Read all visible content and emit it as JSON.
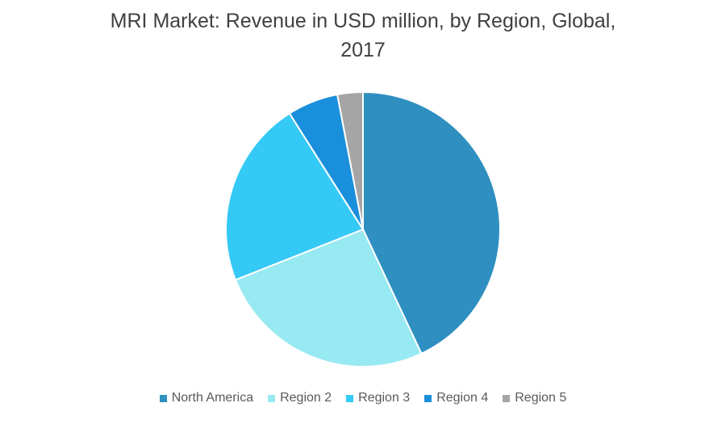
{
  "chart_data": {
    "type": "pie",
    "title": "MRI Market: Revenue in USD million, by Region, Global, 2017",
    "categories": [
      "North America",
      "Region 2",
      "Region 3",
      "Region 4",
      "Region 5"
    ],
    "values": [
      43,
      26,
      22,
      6,
      3
    ],
    "colors": [
      "#2e8fc0",
      "#97e9f2",
      "#35c9f5",
      "#1a8fdc",
      "#a5a5a5"
    ],
    "legend": "bottom"
  }
}
